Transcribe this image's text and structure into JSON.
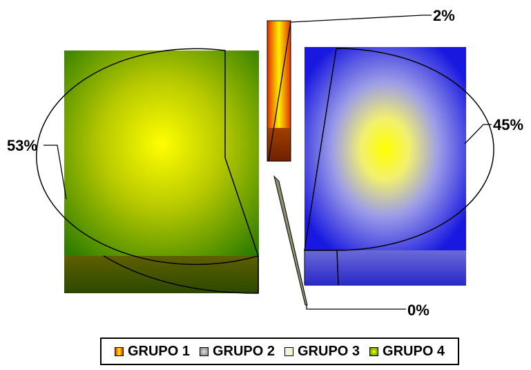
{
  "chart_data": {
    "type": "pie",
    "style": "3d-exploded",
    "slices": [
      {
        "name": "GRUPO 1",
        "value": 2,
        "label": "2%",
        "color": "#d83a10"
      },
      {
        "name": "GRUPO 2",
        "value": 45,
        "label": "45%",
        "color": "#2a2ae0"
      },
      {
        "name": "GRUPO 3",
        "value": 0,
        "label": "0%",
        "color": "#f3f0c8"
      },
      {
        "name": "GRUPO 4",
        "value": 53,
        "label": "53%",
        "color": "#3a8a00"
      }
    ],
    "legend_position": "bottom"
  }
}
